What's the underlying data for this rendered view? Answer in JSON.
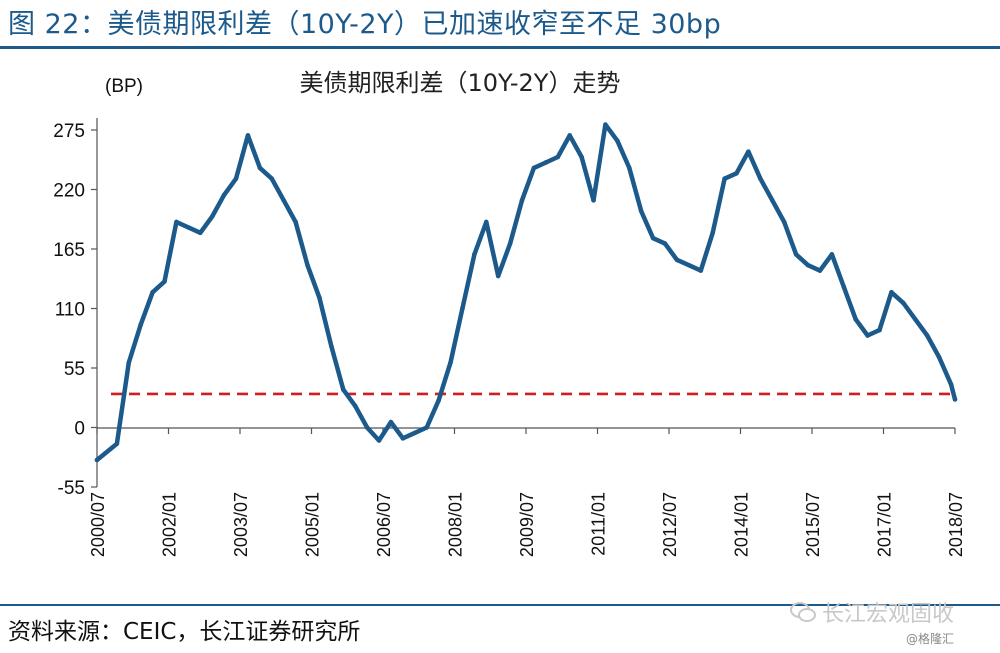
{
  "figure": {
    "title": "图 22：美债期限利差（10Y-2Y）已加速收窄至不足 30bp",
    "source": "资料来源：CEIC，长江证券研究所",
    "watermark": "长江宏观固收",
    "watermark_sub": "@格隆汇",
    "accent_color": "#1c5a8c"
  },
  "chart_data": {
    "type": "line",
    "title": "美债期限利差（10Y-2Y）走势",
    "unit_label": "(BP)",
    "ylim": [
      -55,
      275
    ],
    "yticks": [
      -55,
      0,
      55,
      110,
      165,
      220,
      275
    ],
    "xticks": [
      "2000/07",
      "2002/01",
      "2003/07",
      "2005/01",
      "2006/07",
      "2008/01",
      "2009/07",
      "2011/01",
      "2012/07",
      "2014/01",
      "2015/07",
      "2017/01",
      "2018/07"
    ],
    "x_range": [
      "2000/07",
      "2018/07"
    ],
    "grid": false,
    "legend": "none",
    "series": [
      {
        "color": "#1c5a8c",
        "x": [
          "2000/07",
          "2000/12",
          "2001/03",
          "2001/06",
          "2001/09",
          "2001/12",
          "2002/03",
          "2002/06",
          "2002/09",
          "2002/12",
          "2003/03",
          "2003/06",
          "2003/09",
          "2003/12",
          "2004/03",
          "2004/06",
          "2004/09",
          "2004/12",
          "2005/03",
          "2005/06",
          "2005/09",
          "2005/12",
          "2006/03",
          "2006/06",
          "2006/09",
          "2006/12",
          "2007/03",
          "2007/06",
          "2007/09",
          "2007/12",
          "2008/03",
          "2008/06",
          "2008/09",
          "2008/12",
          "2009/03",
          "2009/06",
          "2009/09",
          "2009/12",
          "2010/03",
          "2010/06",
          "2010/09",
          "2010/12",
          "2011/03",
          "2011/06",
          "2011/09",
          "2011/12",
          "2012/03",
          "2012/06",
          "2012/09",
          "2012/12",
          "2013/03",
          "2013/06",
          "2013/09",
          "2013/12",
          "2014/03",
          "2014/06",
          "2014/09",
          "2014/12",
          "2015/03",
          "2015/06",
          "2015/09",
          "2015/12",
          "2016/03",
          "2016/06",
          "2016/09",
          "2016/12",
          "2017/03",
          "2017/06",
          "2017/09",
          "2017/12",
          "2018/03",
          "2018/06",
          "2018/07"
        ],
        "values": [
          -30,
          -15,
          60,
          95,
          125,
          135,
          190,
          185,
          180,
          195,
          215,
          230,
          270,
          240,
          230,
          210,
          190,
          150,
          120,
          75,
          35,
          20,
          0,
          -12,
          5,
          -10,
          -5,
          0,
          25,
          60,
          110,
          160,
          190,
          140,
          170,
          210,
          240,
          245,
          250,
          270,
          250,
          210,
          280,
          265,
          240,
          200,
          175,
          170,
          155,
          150,
          145,
          180,
          230,
          235,
          255,
          230,
          210,
          190,
          160,
          150,
          145,
          160,
          130,
          100,
          85,
          90,
          125,
          115,
          100,
          85,
          65,
          40,
          26
        ]
      }
    ],
    "reference_line": {
      "value": 31,
      "color": "#d21e1e",
      "style": "dashed"
    }
  }
}
